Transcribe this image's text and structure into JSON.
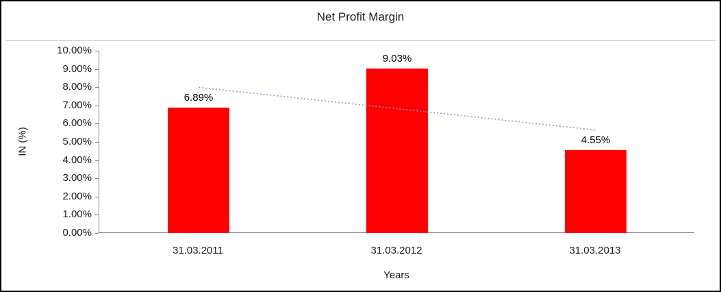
{
  "chart_data": {
    "type": "bar",
    "title": "Net Profit Margin",
    "xlabel": "Years",
    "ylabel": "IN (%)",
    "categories": [
      "31.03.2011",
      "31.03.2012",
      "31.03.2013"
    ],
    "values": [
      6.89,
      9.03,
      4.55
    ],
    "data_labels": [
      "6.89%",
      "9.03%",
      "4.55%"
    ],
    "y_ticks": [
      "0.00%",
      "1.00%",
      "2.00%",
      "3.00%",
      "4.00%",
      "5.00%",
      "6.00%",
      "7.00%",
      "8.00%",
      "9.00%",
      "10.00%"
    ],
    "ylim": [
      0,
      10
    ],
    "grid": false,
    "legend": "none",
    "bar_color": "#FF0000",
    "axis_color": "#808080",
    "trendline": {
      "type": "linear",
      "style": "dotted",
      "color": "#77A2C9",
      "start_value": 7.99,
      "end_value": 5.65
    }
  }
}
